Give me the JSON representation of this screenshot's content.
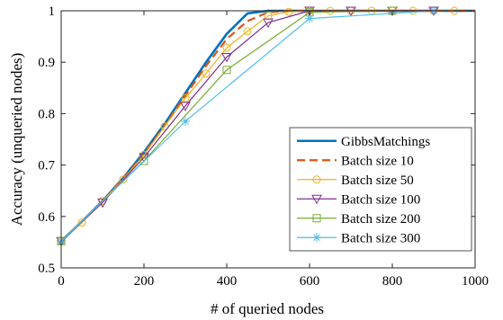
{
  "chart_data": {
    "type": "line",
    "title": "",
    "xlabel": "# of queried nodes",
    "ylabel": "Accuracy (unqueried nodes)",
    "xlim": [
      0,
      1000
    ],
    "ylim": [
      0.5,
      1
    ],
    "xticks": [
      0,
      200,
      400,
      600,
      800,
      1000
    ],
    "yticks": [
      0.5,
      0.6,
      0.7,
      0.8,
      0.9,
      1
    ],
    "xtick_labels": [
      "0",
      "200",
      "400",
      "600",
      "800",
      "1000"
    ],
    "ytick_labels": [
      "0.5",
      "0.6",
      "0.7",
      "0.8",
      "0.9",
      "1"
    ],
    "grid": false,
    "legend_position": "lower-right",
    "series": [
      {
        "name": "GibbsMatchings",
        "color": "#0072BD",
        "dash": "solid",
        "marker": "none",
        "x": [
          0,
          50,
          100,
          150,
          200,
          250,
          300,
          350,
          400,
          450,
          500,
          550,
          600,
          700,
          800,
          900,
          1000
        ],
        "y": [
          0.552,
          0.59,
          0.63,
          0.675,
          0.725,
          0.78,
          0.84,
          0.9,
          0.955,
          0.995,
          1.0,
          1.0,
          1.0,
          1.0,
          1.0,
          1.0,
          1.0
        ]
      },
      {
        "name": "Batch size 10",
        "color": "#D95319",
        "dash": "dashed",
        "marker": "none",
        "x": [
          0,
          50,
          100,
          150,
          200,
          250,
          300,
          350,
          400,
          450,
          500,
          550,
          600,
          700,
          800,
          900,
          1000
        ],
        "y": [
          0.552,
          0.59,
          0.63,
          0.674,
          0.722,
          0.777,
          0.835,
          0.893,
          0.945,
          0.98,
          0.997,
          1.0,
          1.0,
          1.0,
          1.0,
          1.0,
          1.0
        ]
      },
      {
        "name": "Batch size 50",
        "color": "#EDB120",
        "dash": "solid",
        "marker": "circle",
        "x": [
          0,
          50,
          100,
          150,
          200,
          250,
          300,
          350,
          400,
          450,
          500,
          550,
          600,
          650,
          700,
          750,
          800,
          850,
          900,
          950
        ],
        "y": [
          0.552,
          0.588,
          0.63,
          0.672,
          0.72,
          0.775,
          0.83,
          0.878,
          0.928,
          0.96,
          0.99,
          0.998,
          1.0,
          1.0,
          1.0,
          1.0,
          1.0,
          1.0,
          1.0,
          1.0
        ]
      },
      {
        "name": "Batch size 100",
        "color": "#7E2F8E",
        "dash": "solid",
        "marker": "triangle-down",
        "x": [
          0,
          100,
          200,
          300,
          400,
          500,
          600,
          700,
          800,
          900
        ],
        "y": [
          0.552,
          0.627,
          0.715,
          0.815,
          0.91,
          0.977,
          1.0,
          1.0,
          1.0,
          1.0
        ]
      },
      {
        "name": "Batch size 200",
        "color": "#77AC30",
        "dash": "solid",
        "marker": "square",
        "x": [
          0,
          200,
          400,
          600,
          800
        ],
        "y": [
          0.552,
          0.708,
          0.885,
          0.997,
          1.0
        ]
      },
      {
        "name": "Batch size 300",
        "color": "#4DBEEE",
        "dash": "solid",
        "marker": "asterisk",
        "x": [
          0,
          300,
          600,
          900
        ],
        "y": [
          0.552,
          0.785,
          0.985,
          1.0
        ]
      }
    ]
  }
}
